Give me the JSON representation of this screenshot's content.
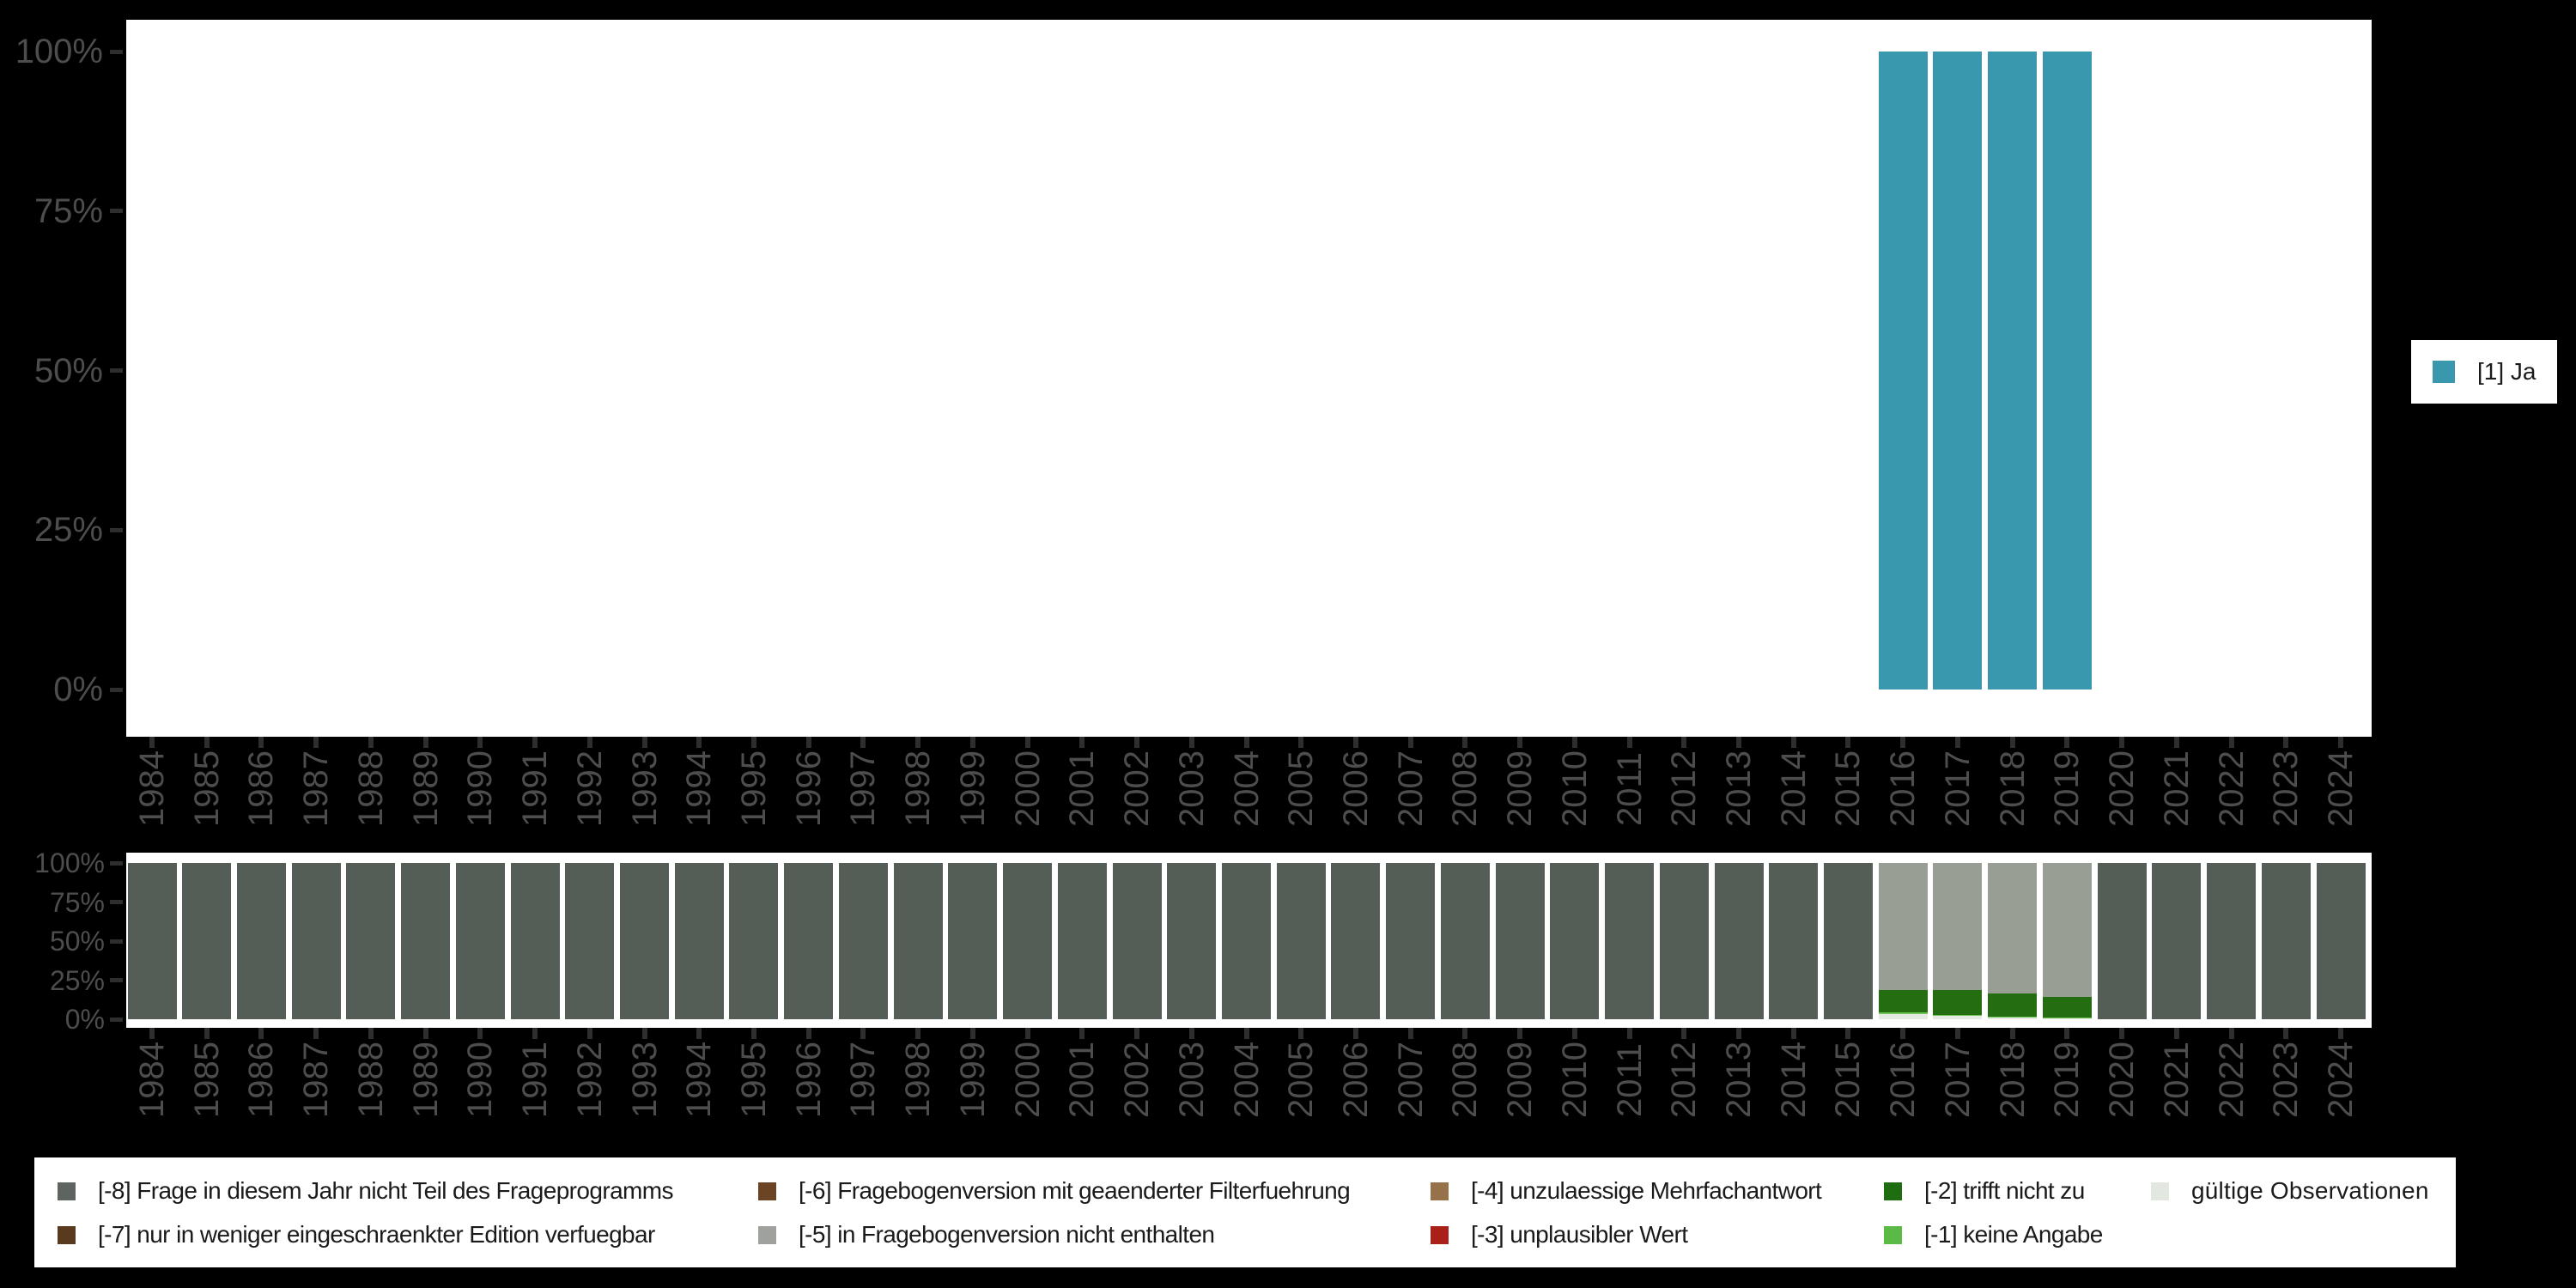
{
  "years": [
    "1984",
    "1985",
    "1986",
    "1987",
    "1988",
    "1989",
    "1990",
    "1991",
    "1992",
    "1993",
    "1994",
    "1995",
    "1996",
    "1997",
    "1998",
    "1999",
    "2000",
    "2001",
    "2002",
    "2003",
    "2004",
    "2005",
    "2006",
    "2007",
    "2008",
    "2009",
    "2010",
    "2011",
    "2012",
    "2013",
    "2014",
    "2015",
    "2016",
    "2017",
    "2018",
    "2019",
    "2020",
    "2021",
    "2022",
    "2023",
    "2024"
  ],
  "chart_data": [
    {
      "id": "values-chart",
      "type": "bar",
      "title": "",
      "xlabel": "",
      "ylabel": "",
      "x": [
        "1984",
        "1985",
        "1986",
        "1987",
        "1988",
        "1989",
        "1990",
        "1991",
        "1992",
        "1993",
        "1994",
        "1995",
        "1996",
        "1997",
        "1998",
        "1999",
        "2000",
        "2001",
        "2002",
        "2003",
        "2004",
        "2005",
        "2006",
        "2007",
        "2008",
        "2009",
        "2010",
        "2011",
        "2012",
        "2013",
        "2014",
        "2015",
        "2016",
        "2017",
        "2018",
        "2019",
        "2020",
        "2021",
        "2022",
        "2023",
        "2024"
      ],
      "y_tick_labels": [
        "100%",
        "75%",
        "50%",
        "25%",
        "0%"
      ],
      "ylim": [
        0,
        100
      ],
      "grid": false,
      "legend_position": "right",
      "series": [
        {
          "name": "[1] Ja",
          "color": "#3A98AE",
          "values": {
            "2016": 100,
            "2017": 100,
            "2018": 100,
            "2019": 100
          }
        }
      ]
    },
    {
      "id": "missing-values-chart",
      "type": "stacked-bar",
      "title": "",
      "xlabel": "",
      "ylabel": "",
      "x": [
        "1984",
        "1985",
        "1986",
        "1987",
        "1988",
        "1989",
        "1990",
        "1991",
        "1992",
        "1993",
        "1994",
        "1995",
        "1996",
        "1997",
        "1998",
        "1999",
        "2000",
        "2001",
        "2002",
        "2003",
        "2004",
        "2005",
        "2006",
        "2007",
        "2008",
        "2009",
        "2010",
        "2011",
        "2012",
        "2013",
        "2014",
        "2015",
        "2016",
        "2017",
        "2018",
        "2019",
        "2020",
        "2021",
        "2022",
        "2023",
        "2024"
      ],
      "y_tick_labels": [
        "100%",
        "75%",
        "50%",
        "25%",
        "0%"
      ],
      "ylim": [
        0,
        100
      ],
      "grid": false,
      "legend_position": "bottom",
      "series_bottom_to_top": [
        {
          "name": "gültige Observationen",
          "color": "#E4E9E1",
          "values": {
            "2016": 3.3,
            "2017": 2.0,
            "2018": 1.4,
            "2019": 0.7
          }
        },
        {
          "name": "[-1] keine Angabe",
          "color": "#6EC457",
          "values": {
            "2016": 1.2,
            "2017": 0.7,
            "2018": 0.5,
            "2019": 0.3
          }
        },
        {
          "name": "[-2] trifft nicht zu",
          "color": "#246D10",
          "values": {
            "2016": 14.0,
            "2017": 15.8,
            "2018": 14.6,
            "2019": 13.5
          }
        },
        {
          "name": "[-5] in Fragebogenversion nicht enthalten",
          "color": "#999E95",
          "values": {
            "2016": 81.5,
            "2017": 81.5,
            "2018": 83.5,
            "2019": 85.5
          }
        },
        {
          "name": "[-8] Frage in diesem Jahr nicht Teil des Frageprogramms",
          "color": "#545E56",
          "values": {
            "1984": 100,
            "1985": 100,
            "1986": 100,
            "1987": 100,
            "1988": 100,
            "1989": 100,
            "1990": 100,
            "1991": 100,
            "1992": 100,
            "1993": 100,
            "1994": 100,
            "1995": 100,
            "1996": 100,
            "1997": 100,
            "1998": 100,
            "1999": 100,
            "2000": 100,
            "2001": 100,
            "2002": 100,
            "2003": 100,
            "2004": 100,
            "2005": 100,
            "2006": 100,
            "2007": 100,
            "2008": 100,
            "2009": 100,
            "2010": 100,
            "2011": 100,
            "2012": 100,
            "2013": 100,
            "2014": 100,
            "2015": 100,
            "2020": 100,
            "2021": 100,
            "2022": 100,
            "2023": 100,
            "2024": 100
          }
        }
      ]
    }
  ],
  "top_legend": {
    "label": "[1] Ja",
    "color": "#3A98AE"
  },
  "bottom_legend": {
    "columns": [
      {
        "entries": [
          {
            "label": "[-8] Frage in diesem Jahr nicht Teil des Frageprogramms",
            "color": "#5E6560"
          },
          {
            "label": "[-7] nur in weniger eingeschraenkter Edition verfuegbar",
            "color": "#5A3A1E"
          }
        ]
      },
      {
        "entries": [
          {
            "label": "[-6] Fragebogenversion mit geaenderter Filterfuehrung",
            "color": "#6B4423"
          },
          {
            "label": "[-5] in Fragebogenversion nicht enthalten",
            "color": "#9FA29C"
          }
        ]
      },
      {
        "entries": [
          {
            "label": "[-4] unzulaessige Mehrfachantwort",
            "color": "#96714A"
          },
          {
            "label": "[-3] unplausibler Wert",
            "color": "#A92019"
          }
        ]
      },
      {
        "entries": [
          {
            "label": "[-2] trifft nicht zu",
            "color": "#1E6D10"
          },
          {
            "label": "[-1] keine Angabe",
            "color": "#5BBA46"
          }
        ]
      },
      {
        "entries": [
          {
            "label": "gültige Observationen",
            "color": "#E2E7DF"
          }
        ]
      }
    ]
  }
}
